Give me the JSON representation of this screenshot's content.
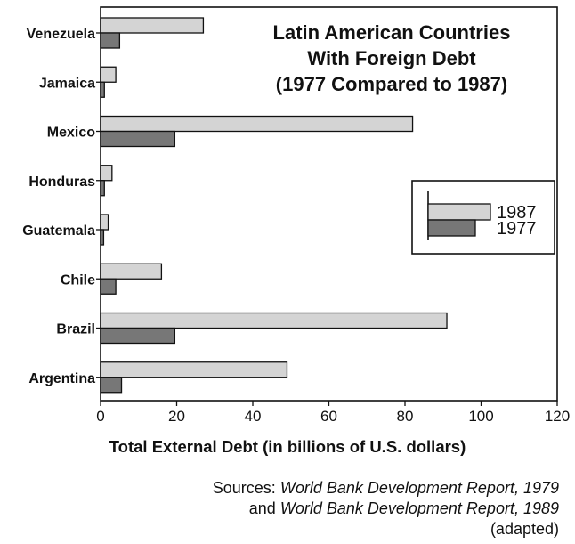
{
  "chart_data": {
    "type": "bar",
    "orientation": "horizontal",
    "title_lines": [
      "Latin American Countries",
      "With Foreign Debt",
      "(1977 Compared to 1987)"
    ],
    "xlabel": "Total External Debt (in billions of U.S. dollars)",
    "xlim": [
      0,
      120
    ],
    "xticks": [
      0,
      20,
      40,
      60,
      80,
      100,
      120
    ],
    "categories": [
      "Venezuela",
      "Jamaica",
      "Mexico",
      "Honduras",
      "Guatemala",
      "Chile",
      "Brazil",
      "Argentina"
    ],
    "series": [
      {
        "name": "1987",
        "color": "#d4d4d4",
        "values": [
          27,
          4,
          82,
          3,
          2,
          16,
          91,
          49
        ]
      },
      {
        "name": "1977",
        "color": "#777777",
        "values": [
          5,
          1,
          19.5,
          1,
          0.8,
          4,
          19.5,
          5.5
        ]
      }
    ],
    "legend_position": "right",
    "grid": false
  },
  "sources": {
    "prefix": "Sources:",
    "ref1": "World Bank Development Report, 1979",
    "connector": "and",
    "ref2": "World Bank Development Report, 1989",
    "note": "(adapted)"
  }
}
